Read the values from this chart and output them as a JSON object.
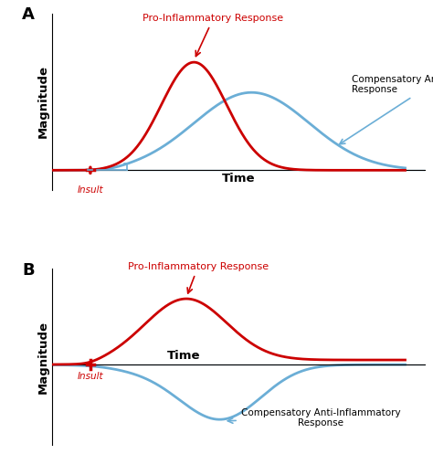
{
  "panel_A_label": "A",
  "panel_B_label": "B",
  "red_color": "#cc0000",
  "blue_color": "#6baed6",
  "xlabel": "Time",
  "ylabel": "Magnitude",
  "pro_inflam_label": "Pro-Inflammatory Response",
  "anti_inflam_label_A": "Compensatory Anti-Inflammatory\nResponse",
  "anti_inflam_label_B": "Compensatory Anti-Inflammatory\nResponse",
  "insult_label": "Insult",
  "bg_color": "#ffffff",
  "label_fontsize": 8.0,
  "axis_label_fontsize": 9.5,
  "panel_label_fontsize": 13
}
